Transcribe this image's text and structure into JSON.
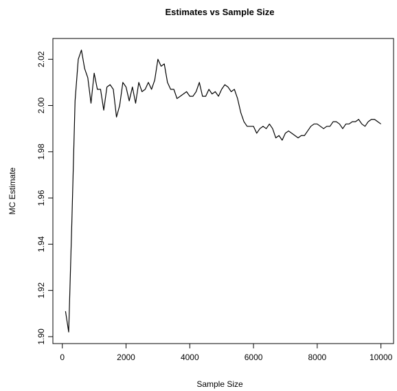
{
  "chart_data": {
    "type": "line",
    "title": "Estimates vs Sample Size",
    "x_label": "Sample Size",
    "y_label": "MC Estimate",
    "color": "#000000",
    "x": [
      100,
      200,
      300,
      400,
      500,
      600,
      700,
      800,
      900,
      1000,
      1100,
      1200,
      1300,
      1400,
      1500,
      1600,
      1700,
      1800,
      1900,
      2000,
      2100,
      2200,
      2300,
      2400,
      2500,
      2600,
      2700,
      2800,
      2900,
      3000,
      3100,
      3200,
      3300,
      3400,
      3500,
      3600,
      3700,
      3800,
      3900,
      4000,
      4100,
      4200,
      4300,
      4400,
      4500,
      4600,
      4700,
      4800,
      4900,
      5000,
      5100,
      5200,
      5300,
      5400,
      5500,
      5600,
      5700,
      5800,
      5900,
      6000,
      6100,
      6200,
      6300,
      6400,
      6500,
      6600,
      6700,
      6800,
      6900,
      7000,
      7100,
      7200,
      7300,
      7400,
      7500,
      7600,
      7700,
      7800,
      7900,
      8000,
      8100,
      8200,
      8300,
      8400,
      8500,
      8600,
      8700,
      8800,
      8900,
      9000,
      9100,
      9200,
      9300,
      9400,
      9500,
      9600,
      9700,
      9800,
      9900,
      10000
    ],
    "values": [
      1.911,
      1.902,
      1.95,
      2.002,
      2.02,
      2.024,
      2.016,
      2.012,
      2.001,
      2.014,
      2.007,
      2.007,
      1.998,
      2.008,
      2.009,
      2.007,
      1.995,
      2.0,
      2.01,
      2.008,
      2.002,
      2.008,
      2.001,
      2.01,
      2.006,
      2.007,
      2.01,
      2.007,
      2.011,
      2.02,
      2.017,
      2.018,
      2.01,
      2.007,
      2.007,
      2.003,
      2.004,
      2.005,
      2.006,
      2.004,
      2.004,
      2.006,
      2.01,
      2.004,
      2.004,
      2.007,
      2.005,
      2.006,
      2.004,
      2.007,
      2.009,
      2.008,
      2.006,
      2.007,
      2.003,
      1.997,
      1.993,
      1.991,
      1.991,
      1.991,
      1.988,
      1.99,
      1.991,
      1.99,
      1.992,
      1.99,
      1.986,
      1.987,
      1.985,
      1.988,
      1.989,
      1.988,
      1.987,
      1.986,
      1.987,
      1.987,
      1.989,
      1.991,
      1.992,
      1.992,
      1.991,
      1.99,
      1.991,
      1.991,
      1.993,
      1.993,
      1.992,
      1.99,
      1.992,
      1.992,
      1.993,
      1.993,
      1.994,
      1.992,
      1.991,
      1.993,
      1.994,
      1.994,
      1.993,
      1.992
    ],
    "xlim": [
      -296,
      10396
    ],
    "ylim": [
      1.897,
      2.029
    ],
    "xticks": [
      0,
      2000,
      4000,
      6000,
      8000,
      10000
    ],
    "yticks": [
      {
        "value": 1.9,
        "label": "1.90"
      },
      {
        "value": 1.92,
        "label": "1.92"
      },
      {
        "value": 1.94,
        "label": "1.94"
      },
      {
        "value": 1.96,
        "label": "1.96"
      },
      {
        "value": 1.98,
        "label": "1.98"
      },
      {
        "value": 2.0,
        "label": "2.00"
      },
      {
        "value": 2.02,
        "label": "2.02"
      }
    ]
  }
}
